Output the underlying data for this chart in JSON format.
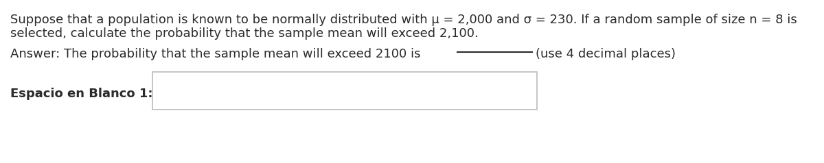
{
  "background_color": "#ffffff",
  "line1": "Suppose that a population is known to be normally distributed with μ = 2,000 and σ = 230. If a random sample of size n = 8 is",
  "line2": "selected, calculate the probability that the sample mean will exceed 2,100.",
  "line3": "Answer: The probability that the sample mean will exceed 2100 is",
  "line3b": "(use 4 decimal places)",
  "label": "Espacio en Blanco 1:",
  "text_color": "#2b2b2b",
  "font_size": 13.0,
  "label_font_size": 13.0,
  "box_edge_color": "#bbbbbb",
  "box_face_color": "#ffffff"
}
